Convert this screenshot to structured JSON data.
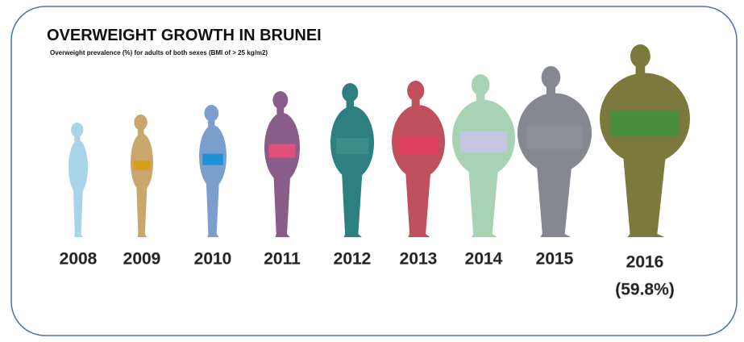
{
  "title": "OVERWEIGHT GROWTH IN BRUNEI",
  "subtitle": "Overweight prevalence (%) for adults of both sexes (BMI of > 25 kg/m2)",
  "figures": [
    {
      "year": "2008",
      "color": "#a9d3e8",
      "belt_color": "#a9d3e8"
    },
    {
      "year": "2009",
      "color": "#c9a66b",
      "belt_color": "#d4a017"
    },
    {
      "year": "2010",
      "color": "#7b9fcc",
      "belt_color": "#1e90d6"
    },
    {
      "year": "2011",
      "color": "#8a5c8a",
      "belt_color": "#e0507a"
    },
    {
      "year": "2012",
      "color": "#2e7f7f",
      "belt_color": "#3a8f8a"
    },
    {
      "year": "2013",
      "color": "#c0505e",
      "belt_color": "#e04060"
    },
    {
      "year": "2014",
      "color": "#a8d2b4",
      "belt_color": "#c4c6e2"
    },
    {
      "year": "2015",
      "color": "#868890",
      "belt_color": "#8e8f95"
    },
    {
      "year": "2016",
      "color": "#7b7a3c",
      "belt_color": "#4a8f3c"
    }
  ],
  "annotation": "(59.8%)"
}
